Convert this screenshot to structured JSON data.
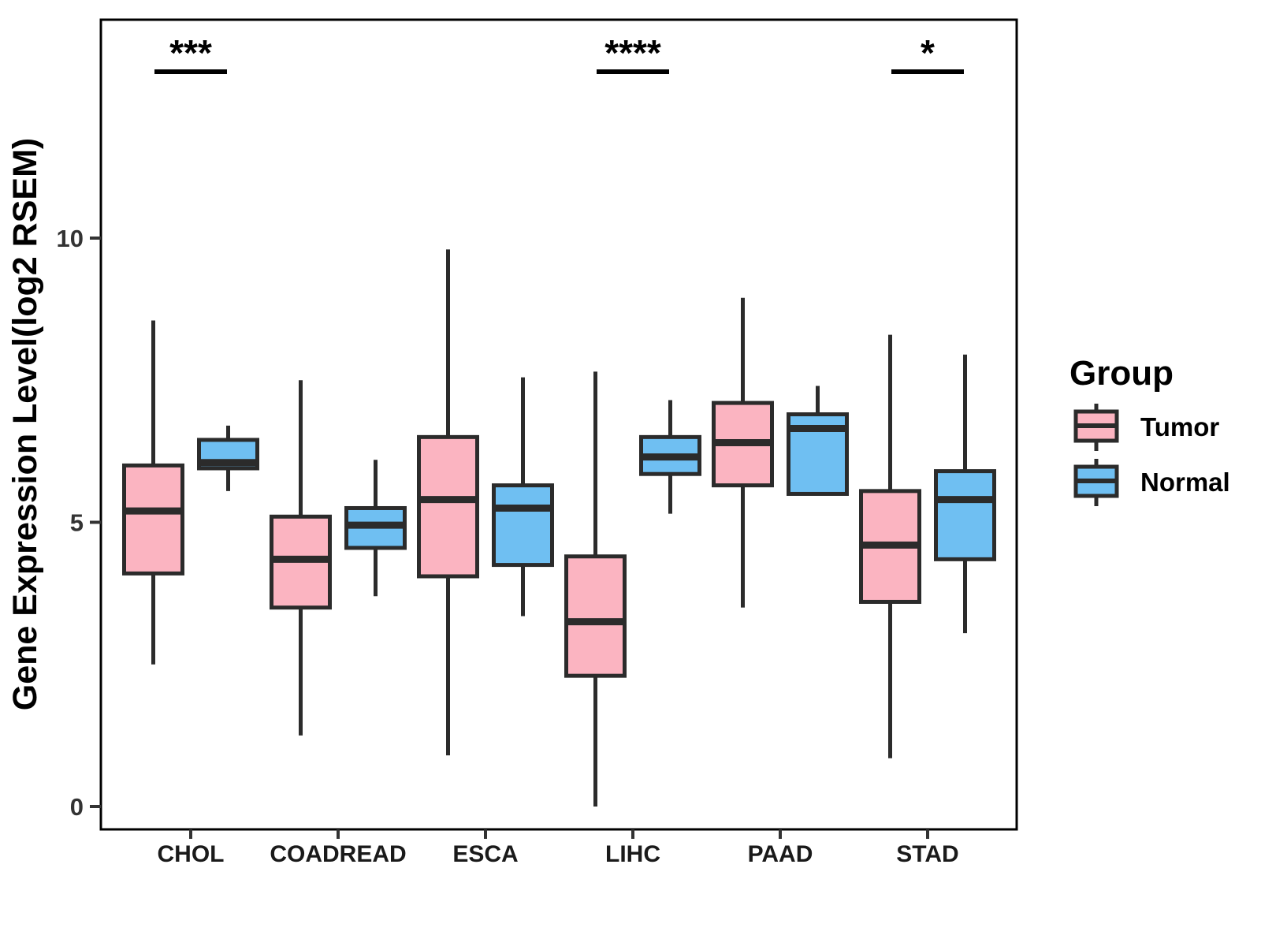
{
  "legend": {
    "title": "Group",
    "items": [
      {
        "label": "Tumor",
        "color": "#FBB4C1"
      },
      {
        "label": "Normal",
        "color": "#6FBFF2"
      }
    ]
  },
  "significance": [
    {
      "category": "CHOL",
      "stars": "***"
    },
    {
      "category": "LIHC",
      "stars": "****"
    },
    {
      "category": "STAD",
      "stars": "*"
    }
  ],
  "colors": {
    "tumor_fill": "#FBB4C1",
    "normal_fill": "#6FBFF2",
    "box_stroke": "#2B2B2B",
    "panel_border": "#000000",
    "tick_label": "#333333",
    "category_label": "#1A1A1A"
  },
  "chart_data": {
    "type": "boxplot",
    "title": "",
    "xlabel": "",
    "ylabel": "Gene Expression Level(log2 RSEM)",
    "categories": [
      "CHOL",
      "COADREAD",
      "ESCA",
      "LIHC",
      "PAAD",
      "STAD"
    ],
    "y_ticks": [
      0,
      5,
      10
    ],
    "ylim": [
      -0.4,
      13.8
    ],
    "grid": false,
    "legend_position": "right",
    "series": [
      {
        "name": "Tumor",
        "color": "#FBB4C1",
        "boxes": [
          {
            "category": "CHOL",
            "whisker_low": 2.5,
            "q1": 4.1,
            "median": 5.2,
            "q3": 6.0,
            "whisker_high": 8.55
          },
          {
            "category": "COADREAD",
            "whisker_low": 1.25,
            "q1": 3.5,
            "median": 4.35,
            "q3": 5.1,
            "whisker_high": 7.5
          },
          {
            "category": "ESCA",
            "whisker_low": 0.9,
            "q1": 4.05,
            "median": 5.4,
            "q3": 6.5,
            "whisker_high": 9.8
          },
          {
            "category": "LIHC",
            "whisker_low": 0.0,
            "q1": 2.3,
            "median": 3.25,
            "q3": 4.4,
            "whisker_high": 7.65
          },
          {
            "category": "PAAD",
            "whisker_low": 3.5,
            "q1": 5.65,
            "median": 6.4,
            "q3": 7.1,
            "whisker_high": 8.95
          },
          {
            "category": "STAD",
            "whisker_low": 0.85,
            "q1": 3.6,
            "median": 4.6,
            "q3": 5.55,
            "whisker_high": 8.3
          }
        ]
      },
      {
        "name": "Normal",
        "color": "#6FBFF2",
        "boxes": [
          {
            "category": "CHOL",
            "whisker_low": 5.55,
            "q1": 5.95,
            "median": 6.05,
            "q3": 6.45,
            "whisker_high": 6.7
          },
          {
            "category": "COADREAD",
            "whisker_low": 3.7,
            "q1": 4.55,
            "median": 4.95,
            "q3": 5.25,
            "whisker_high": 6.1
          },
          {
            "category": "ESCA",
            "whisker_low": 3.35,
            "q1": 4.25,
            "median": 5.25,
            "q3": 5.65,
            "whisker_high": 7.55
          },
          {
            "category": "LIHC",
            "whisker_low": 5.15,
            "q1": 5.85,
            "median": 6.15,
            "q3": 6.5,
            "whisker_high": 7.15
          },
          {
            "category": "PAAD",
            "whisker_low": 5.5,
            "q1": 5.5,
            "median": 6.65,
            "q3": 6.9,
            "whisker_high": 7.4
          },
          {
            "category": "STAD",
            "whisker_low": 3.05,
            "q1": 4.35,
            "median": 5.4,
            "q3": 5.9,
            "whisker_high": 7.95
          }
        ]
      }
    ]
  }
}
